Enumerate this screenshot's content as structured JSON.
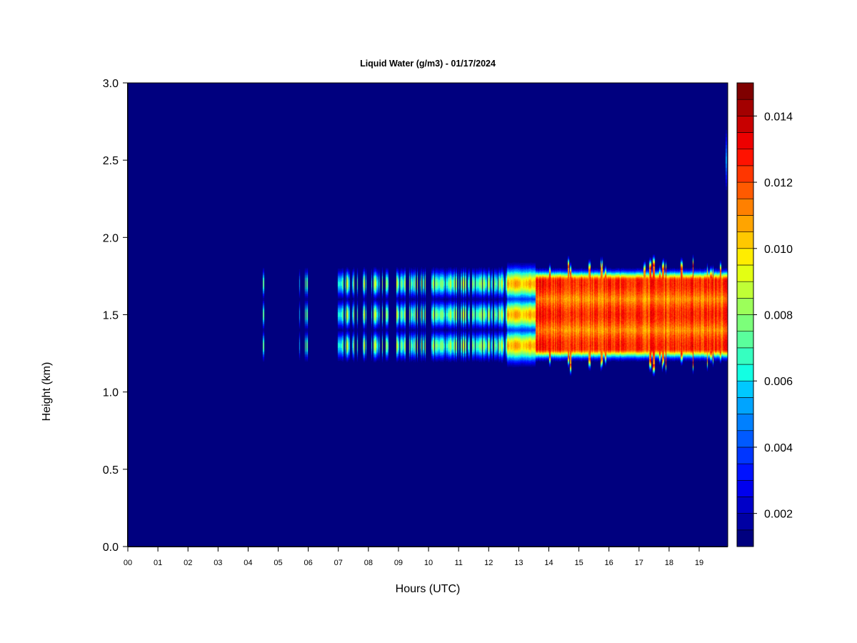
{
  "chart_data": {
    "type": "heatmap",
    "title": "Liquid Water (g/m3) - 01/17/2024",
    "xlabel": "Hours (UTC)",
    "ylabel": "Height (km)",
    "x_ticks": [
      "00",
      "01",
      "02",
      "03",
      "04",
      "05",
      "06",
      "07",
      "08",
      "09",
      "10",
      "11",
      "12",
      "13",
      "14",
      "15",
      "16",
      "17",
      "18",
      "19"
    ],
    "xlim": [
      0,
      19.95
    ],
    "y_ticks": [
      "0.0",
      "0.5",
      "1.0",
      "1.5",
      "2.0",
      "2.5",
      "3.0"
    ],
    "ylim": [
      0,
      3.0
    ],
    "background_value": 0.001,
    "colorbar": {
      "range": [
        0.001,
        0.015
      ],
      "tick_labels": [
        "0.002",
        "0.004",
        "0.006",
        "0.008",
        "0.010",
        "0.012",
        "0.014"
      ],
      "colors": [
        "#00007f",
        "#0000a3",
        "#0000c8",
        "#0000ed",
        "#0012ff",
        "#0036ff",
        "#005aff",
        "#0080ff",
        "#00a4ff",
        "#00c8ff",
        "#13ffe3",
        "#36ffc0",
        "#5aff9c",
        "#7cff7a",
        "#9cff5a",
        "#c0ff36",
        "#e3ff13",
        "#ffed00",
        "#ffc800",
        "#ffa400",
        "#ff8000",
        "#ff5a00",
        "#ff3600",
        "#ff1200",
        "#ed0000",
        "#c80000",
        "#a30000",
        "#7f0000"
      ]
    },
    "cloud_layers": [
      {
        "height_km": 1.3,
        "thickness_km": 0.12
      },
      {
        "height_km": 1.5,
        "thickness_km": 0.12
      },
      {
        "height_km": 1.7,
        "thickness_km": 0.12
      }
    ],
    "intermittent_phase": {
      "start_hour": 4.5,
      "end_hour": 12.6,
      "peak_value": 0.0095
    },
    "transition_phase": {
      "start_hour": 12.6,
      "end_hour": 13.55,
      "peak_value": 0.0115
    },
    "solid_phase": {
      "start_hour": 13.55,
      "end_hour": 19.95,
      "top_km": 1.72,
      "bottom_km": 1.28,
      "edge_spread_km": 0.07,
      "peak_value": 0.0135
    },
    "spikes": {
      "start_hour": 13.8,
      "end_hour": 19.9,
      "max_top_km": 1.87,
      "min_bottom_km": 1.12
    },
    "isolated_column": {
      "hour": 19.9,
      "top_km": 2.72,
      "bottom_km": 2.28
    }
  }
}
